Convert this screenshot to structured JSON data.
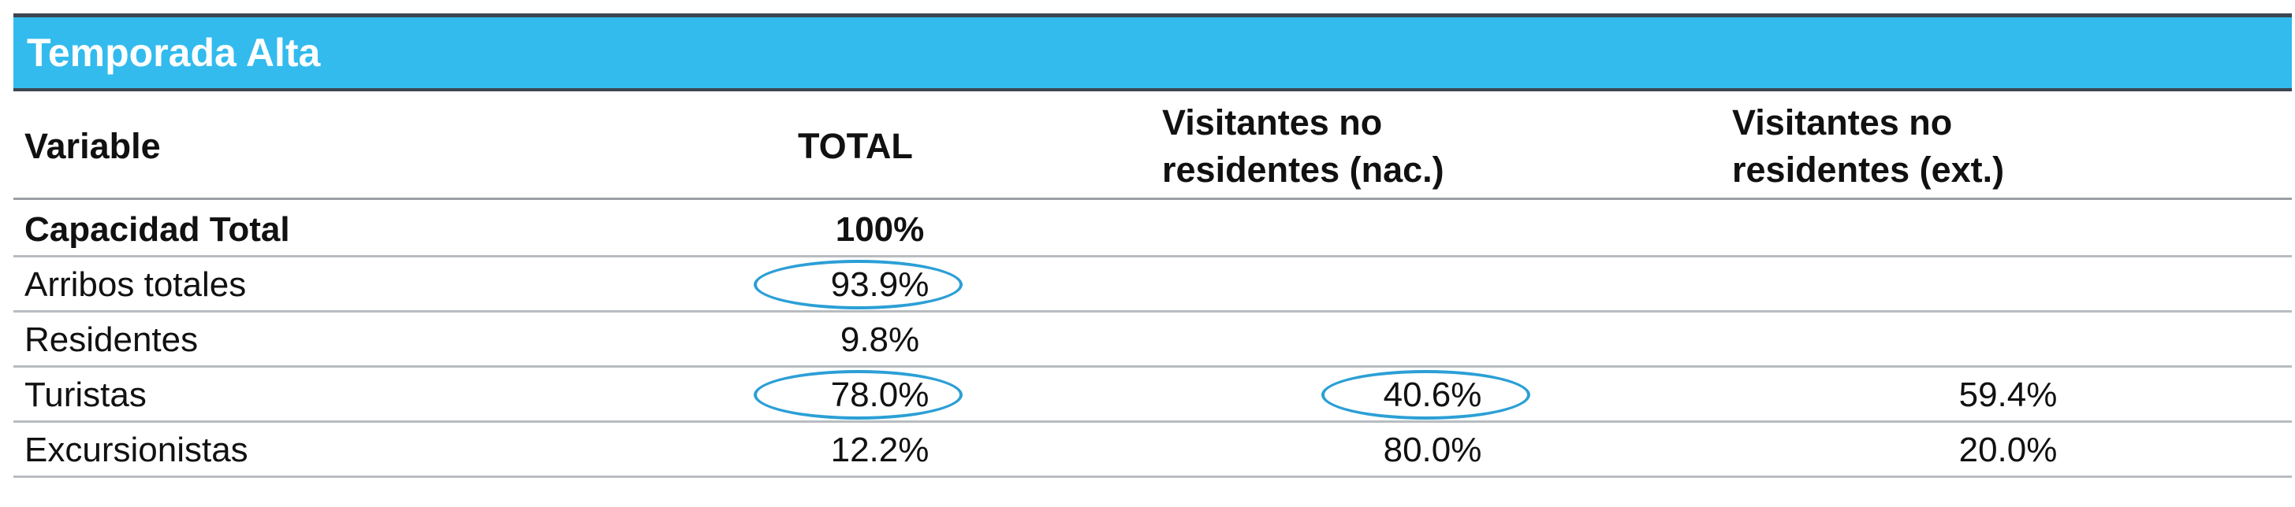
{
  "table": {
    "title": "Temporada Alta",
    "headers": {
      "variable": "Variable",
      "total": "TOTAL",
      "nac_line1": "Visitantes no",
      "nac_line2": "residentes (nac.)",
      "ext_line1": "Visitantes no",
      "ext_line2": "residentes (ext.)"
    },
    "rows": [
      {
        "variable": "Capacidad Total",
        "total": "100%",
        "nac": "",
        "ext": ""
      },
      {
        "variable": "Arribos totales",
        "total": "93.9%",
        "nac": "",
        "ext": ""
      },
      {
        "variable": "Residentes",
        "total": "9.8%",
        "nac": "",
        "ext": ""
      },
      {
        "variable": "Turistas",
        "total": "78.0%",
        "nac": "40.6%",
        "ext": "59.4%"
      },
      {
        "variable": "Excursionistas",
        "total": "12.2%",
        "nac": "80.0%",
        "ext": "20.0%"
      }
    ]
  },
  "colors": {
    "title_band": "#33bbee",
    "highlight_ellipse": "#2b9fd6",
    "rule_dark": "#3d4650"
  }
}
